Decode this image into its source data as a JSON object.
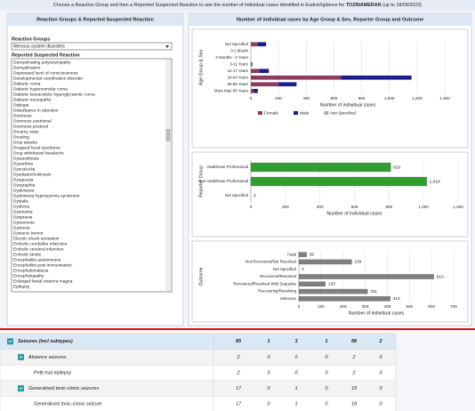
{
  "header": {
    "prefix": "Choose a Reaction Group and then a Reported Suspected Reaction to see the number of individual cases identified in EudraVigilance for ",
    "product": "TOZINAMERAN",
    "suffix": " (up to 18/09/2023)"
  },
  "left_panel": {
    "title": "Reaction Groups & Reported Suspected Reaction",
    "group_label": "Reaction Groups",
    "group_selected": "Nervous system disorders",
    "reaction_label": "Reported Suspected Reaction",
    "selected_index": 44,
    "reactions": [
      "Demyelinating polyneuropathy",
      "Demyelination",
      "Depressed level of consciousness",
      "Developmental coordination disorder",
      "Diabetic coma",
      "Diabetic hyperosmolar coma",
      "Diabetic ketoacidotic hyperglycaemic coma",
      "Diabetic neuropathy",
      "Diplegia",
      "Disturbance in attention",
      "Dizziness",
      "Dizziness exertional",
      "Dizziness postural",
      "Dreamy state",
      "Drooling",
      "Drop attacks",
      "Dropped head syndrome",
      "Drug withdrawal headache",
      "Dysaesthesia",
      "Dysarthria",
      "Dyscalculia",
      "Dysdiadochokinesis",
      "Dysgeusia",
      "Dysgraphia",
      "Dyskinesia",
      "Dyskinesia hyperpyrexia syndrome",
      "Dyslalia",
      "Dyslexia",
      "Dysmetria",
      "Dyspraxia",
      "Dyssomnia",
      "Dystonia",
      "Dystonic tremor",
      "Electric shock sensation",
      "Embolic cerebellar infarction",
      "Embolic cerebral infarction",
      "Embolic stroke",
      "Encephalitis autoimmune",
      "Encephalitis post immunisation",
      "Encephalomalacia",
      "Encephalopathy",
      "Enlarged foetal cisterna magna",
      "Epilepsy"
    ]
  },
  "right_panel": {
    "title": "Number of individual cases by Age Group & Sex, Reporter Group and Outcome"
  },
  "chart_data": [
    {
      "type": "bar",
      "orientation": "horizontal",
      "stacked": true,
      "ylabel": "Age Group & Sex",
      "xlabel": "Number of individual cases",
      "categories": [
        "Not Specified",
        "0-1 Month",
        "2 Months - 2 Years",
        "3-11 Years",
        "12-17 Years",
        "18-64 Years",
        "65-85 Years",
        "More than 85 Years"
      ],
      "series": [
        {
          "name": "Female",
          "color": "#8e3b5e",
          "values": [
            50,
            0,
            0,
            5,
            60,
            650,
            200,
            20
          ]
        },
        {
          "name": "Male",
          "color": "#1c1c8c",
          "values": [
            60,
            0,
            0,
            5,
            70,
            510,
            130,
            30
          ]
        },
        {
          "name": "Not Specified",
          "color": "#a8a8a8",
          "values": [
            0,
            0,
            0,
            0,
            0,
            0,
            0,
            0
          ]
        }
      ],
      "xlim": [
        0,
        1400
      ],
      "xticks": [
        0,
        200,
        400,
        600,
        800,
        {
          "value": 1000,
          "label": "1,000"
        },
        {
          "value": 1200,
          "label": "1,200"
        },
        {
          "value": 1400,
          "label": "1,400"
        }
      ],
      "grid": true,
      "legend": "bottom"
    },
    {
      "type": "bar",
      "orientation": "horizontal",
      "ylabel": "Reporter Group",
      "xlabel": "Number of individual cases",
      "categories": [
        "Healthcare Professional",
        "Non Healthcare Professional",
        "Not Specified"
      ],
      "values": [
        810,
        1018,
        0
      ],
      "value_labels": [
        "810",
        "1,018",
        "0"
      ],
      "color": "#2e9e2e",
      "xlim": [
        0,
        1200
      ],
      "xticks": [
        0,
        200,
        400,
        600,
        800,
        {
          "value": 1000,
          "label": "1,000"
        },
        {
          "value": 1200,
          "label": "1,200"
        }
      ],
      "grid": true
    },
    {
      "type": "bar",
      "orientation": "horizontal",
      "ylabel": "Outcome",
      "xlabel": "Number of individual cases",
      "categories": [
        "Fatal",
        "Not Recovered/Not Resolved",
        "Not Specified",
        "Recovered/Resolved",
        "Recovered/Resolved With Sequelae",
        "Recovering/Resolving",
        "Unknown"
      ],
      "values": [
        35,
        239,
        0,
        610,
        120,
        311,
        413
      ],
      "color": "#808080",
      "xlim": [
        0,
        700
      ],
      "xticks": [
        0,
        100,
        200,
        300,
        400,
        500,
        600,
        700
      ],
      "grid": true
    }
  ],
  "table": {
    "rows": [
      [
        "Seizures (incl subtypes)",
        85,
        1,
        3,
        1,
        88,
        2
      ],
      [
        "Absence seizures",
        2,
        0,
        0,
        0,
        2,
        0
      ],
      [
        "Petit mal epilepsy",
        2,
        0,
        0,
        0,
        2,
        0
      ],
      [
        "Generalised tonic-clonic seizures",
        17,
        0,
        1,
        0,
        18,
        0
      ],
      [
        "Generalised tonic-clonic seizure",
        17,
        0,
        1,
        0,
        18,
        0
      ]
    ]
  }
}
